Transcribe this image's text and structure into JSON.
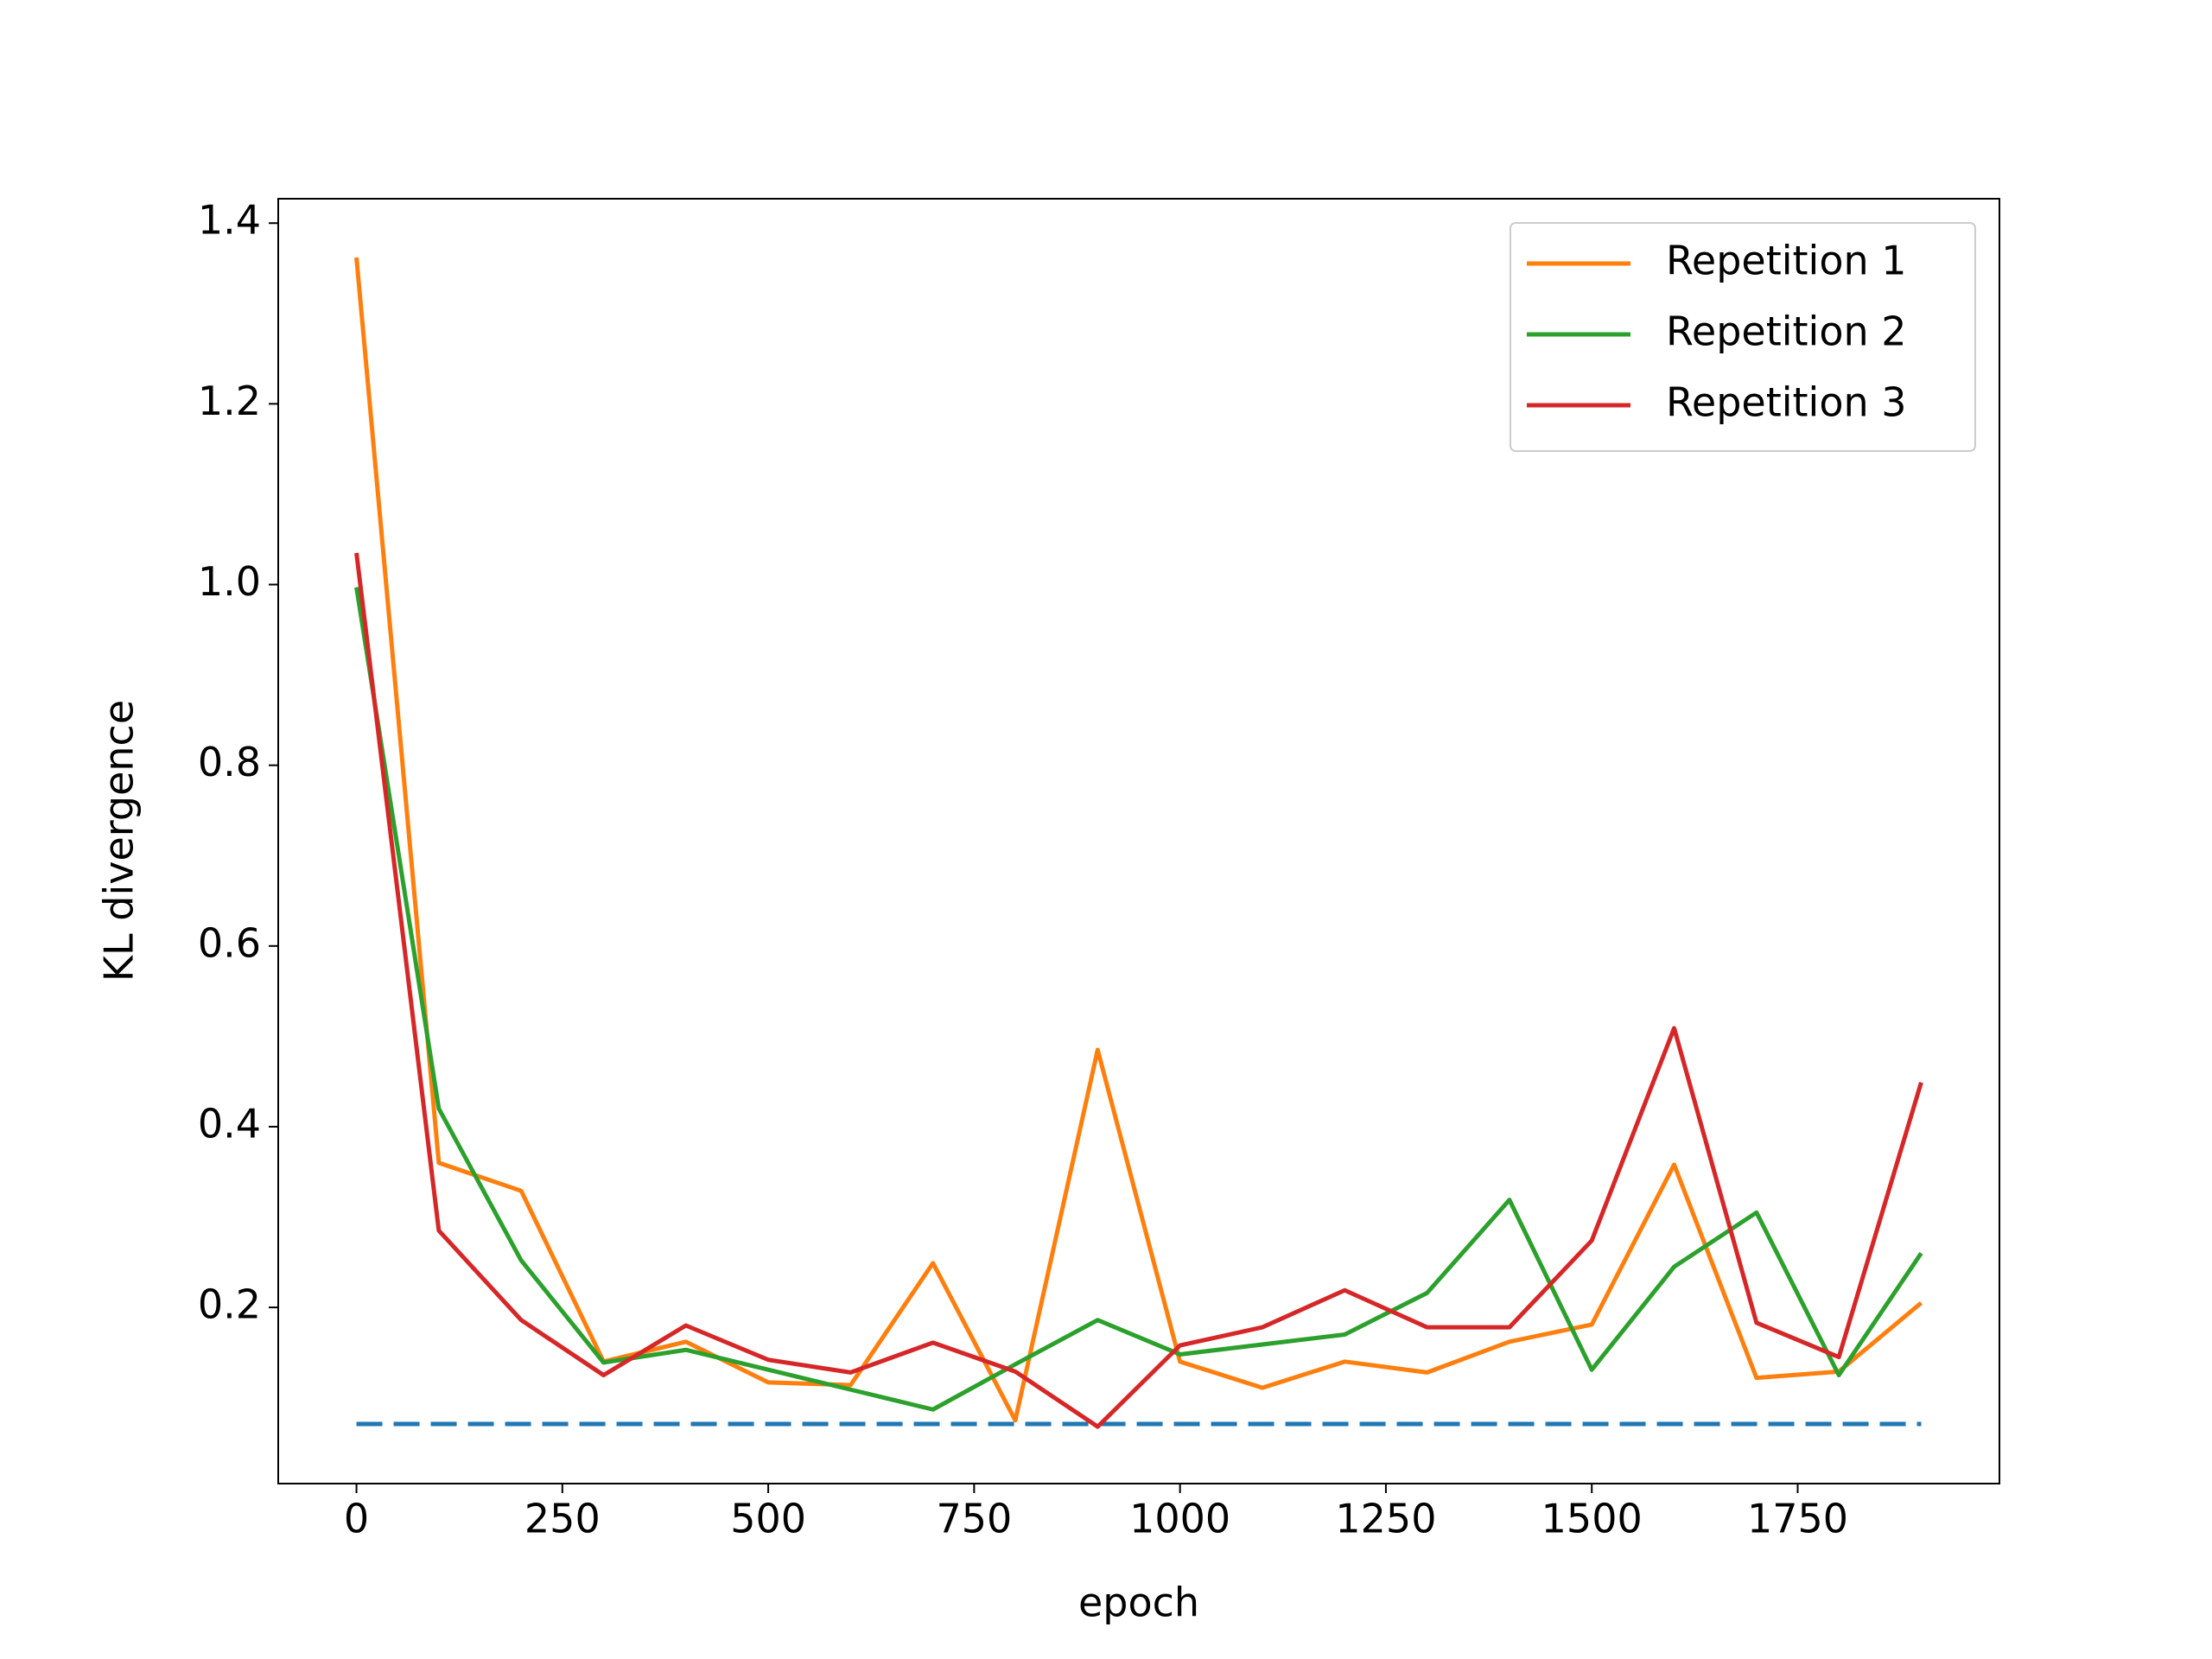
{
  "chart_data": {
    "type": "line",
    "xlabel": "epoch",
    "ylabel": "KL divergence",
    "x": [
      0,
      100,
      200,
      300,
      400,
      500,
      600,
      700,
      800,
      900,
      1000,
      1100,
      1200,
      1300,
      1400,
      1500,
      1600,
      1700,
      1800,
      1900
    ],
    "series": [
      {
        "name": "Repetition 1",
        "color": "#ff7f0e",
        "values": [
          1.362,
          0.36,
          0.329,
          0.14,
          0.162,
          0.117,
          0.114,
          0.249,
          0.075,
          0.485,
          0.14,
          0.111,
          0.14,
          0.128,
          0.162,
          0.181,
          0.358,
          0.122,
          0.129,
          0.205
        ]
      },
      {
        "name": "Repetition 2",
        "color": "#2ca02c",
        "values": [
          0.997,
          0.42,
          0.252,
          0.139,
          0.153,
          0.131,
          0.109,
          0.087,
          0.137,
          0.186,
          0.148,
          0.159,
          0.17,
          0.216,
          0.319,
          0.131,
          0.245,
          0.305,
          0.125,
          0.26
        ]
      },
      {
        "name": "Repetition 3",
        "color": "#d62728",
        "values": [
          1.035,
          0.285,
          0.186,
          0.125,
          0.18,
          0.142,
          0.128,
          0.161,
          0.129,
          0.068,
          0.158,
          0.178,
          0.219,
          0.178,
          0.178,
          0.274,
          0.509,
          0.183,
          0.145,
          0.449
        ]
      }
    ],
    "reference_line": {
      "y": 0.071,
      "x": [
        0,
        1900
      ],
      "color": "#1f77b4",
      "linestyle": "dashed"
    },
    "xlim": [
      -95,
      1995
    ],
    "ylim": [
      0.005,
      1.427
    ],
    "xticks": [
      0,
      250,
      500,
      750,
      1000,
      1250,
      1500,
      1750
    ],
    "yticks": [
      0.2,
      0.4,
      0.6,
      0.8,
      {
        "value": 1,
        "label": "1.0"
      },
      1.2,
      1.4
    ],
    "legend": "upper right"
  }
}
